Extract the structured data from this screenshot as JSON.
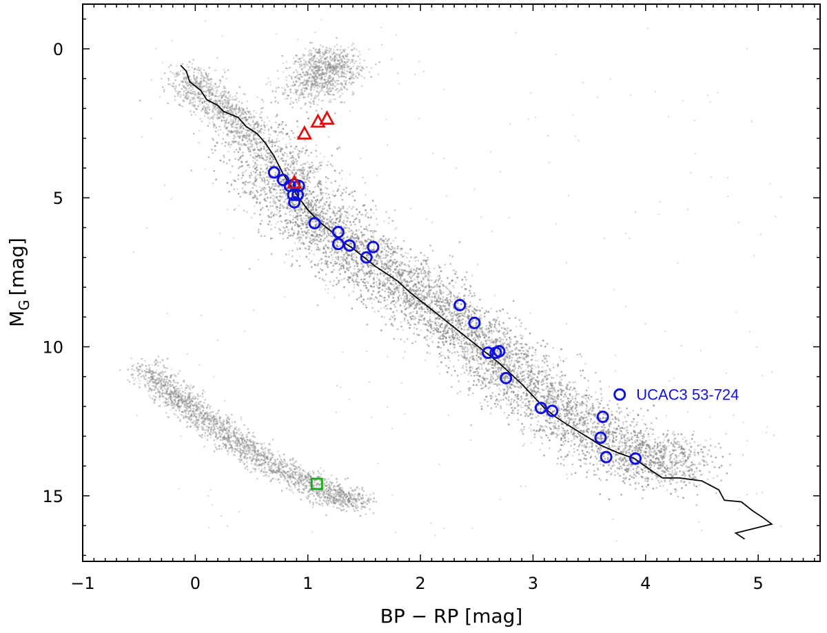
{
  "chart_data": {
    "type": "scatter",
    "title": "",
    "xlabel": "BP − RP [mag]",
    "ylabel_main": "M",
    "ylabel_sub": "G",
    "ylabel_unit": "[mag]",
    "xlim": [
      -1.0,
      5.55
    ],
    "ylim": [
      17.2,
      -1.5
    ],
    "y_inverted": true,
    "grid": false,
    "xticks": [
      -1,
      0,
      1,
      2,
      3,
      4,
      5
    ],
    "xtick_labels": [
      "−1",
      "0",
      "1",
      "2",
      "3",
      "4",
      "5"
    ],
    "yticks": [
      0,
      5,
      10,
      15
    ],
    "ytick_labels": [
      "0",
      "5",
      "10",
      "15"
    ],
    "colors": {
      "background_density": "#8a8a8a",
      "isochrone": "#000000",
      "circle_series": "#1010e0",
      "triangle_series": "#e01010",
      "square_series": "#10b010",
      "annotation": "#1010e0"
    },
    "background_density_regions": [
      {
        "name": "main_sequence",
        "ridge": [
          [
            0.55,
            3.0
          ],
          [
            0.75,
            4.2
          ],
          [
            0.9,
            5.0
          ],
          [
            1.1,
            5.8
          ],
          [
            1.3,
            6.5
          ],
          [
            1.55,
            7.2
          ],
          [
            1.8,
            7.8
          ],
          [
            2.05,
            8.5
          ],
          [
            2.3,
            9.2
          ],
          [
            2.55,
            9.9
          ],
          [
            2.75,
            10.6
          ],
          [
            2.95,
            11.4
          ],
          [
            3.2,
            12.1
          ],
          [
            3.5,
            12.8
          ],
          [
            3.8,
            13.4
          ],
          [
            4.1,
            13.8
          ],
          [
            4.3,
            14.0
          ]
        ],
        "spread": 0.35
      },
      {
        "name": "upper_main_sequence",
        "ridge": [
          [
            -0.1,
            0.8
          ],
          [
            0.1,
            1.6
          ],
          [
            0.3,
            2.2
          ],
          [
            0.5,
            2.9
          ]
        ],
        "spread": 0.2
      },
      {
        "name": "red_giant_clump",
        "ridge": [
          [
            1.0,
            1.5
          ],
          [
            1.15,
            0.6
          ],
          [
            1.25,
            0.5
          ]
        ],
        "spread": 0.25
      },
      {
        "name": "white_dwarf_sequence",
        "ridge": [
          [
            -0.45,
            10.7
          ],
          [
            -0.2,
            11.5
          ],
          [
            0.0,
            12.2
          ],
          [
            0.3,
            13.0
          ],
          [
            0.6,
            13.8
          ],
          [
            0.9,
            14.4
          ],
          [
            1.2,
            14.9
          ],
          [
            1.45,
            15.2
          ]
        ],
        "spread": 0.15
      }
    ],
    "series": [
      {
        "name": "isochrone",
        "marker": "line",
        "points": [
          [
            -0.13,
            0.55
          ],
          [
            -0.08,
            0.75
          ],
          [
            -0.05,
            1.1
          ],
          [
            0.05,
            1.4
          ],
          [
            0.1,
            1.7
          ],
          [
            0.2,
            1.9
          ],
          [
            0.25,
            2.1
          ],
          [
            0.38,
            2.3
          ],
          [
            0.45,
            2.6
          ],
          [
            0.55,
            2.85
          ],
          [
            0.62,
            3.15
          ],
          [
            0.7,
            3.6
          ],
          [
            0.78,
            4.2
          ],
          [
            0.85,
            4.6
          ],
          [
            0.92,
            5.0
          ],
          [
            1.0,
            5.4
          ],
          [
            1.1,
            5.8
          ],
          [
            1.2,
            6.1
          ],
          [
            1.3,
            6.45
          ],
          [
            1.4,
            6.7
          ],
          [
            1.5,
            7.0
          ],
          [
            1.6,
            7.3
          ],
          [
            1.7,
            7.55
          ],
          [
            1.8,
            7.8
          ],
          [
            1.9,
            8.15
          ],
          [
            2.0,
            8.45
          ],
          [
            2.1,
            8.75
          ],
          [
            2.2,
            9.05
          ],
          [
            2.3,
            9.35
          ],
          [
            2.4,
            9.65
          ],
          [
            2.5,
            9.95
          ],
          [
            2.6,
            10.25
          ],
          [
            2.7,
            10.55
          ],
          [
            2.8,
            10.9
          ],
          [
            2.9,
            11.25
          ],
          [
            3.0,
            11.65
          ],
          [
            3.1,
            12.05
          ],
          [
            3.2,
            12.35
          ],
          [
            3.3,
            12.6
          ],
          [
            3.45,
            12.95
          ],
          [
            3.6,
            13.3
          ],
          [
            3.75,
            13.55
          ],
          [
            3.9,
            13.75
          ],
          [
            4.05,
            14.15
          ],
          [
            4.15,
            14.4
          ],
          [
            4.3,
            14.4
          ],
          [
            4.5,
            14.5
          ],
          [
            4.65,
            14.8
          ],
          [
            4.7,
            15.15
          ],
          [
            4.85,
            15.2
          ],
          [
            4.95,
            15.5
          ],
          [
            5.05,
            15.75
          ],
          [
            5.12,
            15.95
          ],
          [
            4.8,
            16.25
          ],
          [
            4.88,
            16.45
          ]
        ]
      },
      {
        "name": "blue_circles",
        "marker": "circle",
        "points": [
          [
            0.7,
            4.15
          ],
          [
            0.78,
            4.4
          ],
          [
            0.84,
            4.6
          ],
          [
            0.87,
            4.9
          ],
          [
            0.88,
            5.15
          ],
          [
            0.91,
            4.9
          ],
          [
            0.92,
            4.6
          ],
          [
            0.88,
            4.55
          ],
          [
            1.06,
            5.85
          ],
          [
            1.27,
            6.15
          ],
          [
            1.27,
            6.55
          ],
          [
            1.37,
            6.6
          ],
          [
            1.52,
            7.0
          ],
          [
            1.58,
            6.65
          ],
          [
            2.35,
            8.6
          ],
          [
            2.48,
            9.2
          ],
          [
            2.6,
            10.2
          ],
          [
            2.67,
            10.2
          ],
          [
            2.7,
            10.15
          ],
          [
            2.76,
            11.05
          ],
          [
            3.07,
            12.05
          ],
          [
            3.17,
            12.15
          ],
          [
            3.62,
            12.35
          ],
          [
            3.6,
            13.05
          ],
          [
            3.65,
            13.7
          ],
          [
            3.77,
            11.6
          ],
          [
            3.91,
            13.75
          ]
        ]
      },
      {
        "name": "red_triangles",
        "marker": "triangle",
        "points": [
          [
            0.97,
            2.85
          ],
          [
            1.09,
            2.45
          ],
          [
            1.17,
            2.35
          ],
          [
            0.88,
            4.5
          ]
        ]
      },
      {
        "name": "green_squares",
        "marker": "square",
        "points": [
          [
            1.08,
            14.6
          ]
        ]
      }
    ],
    "annotations": [
      {
        "text": "UCAC3 53-724",
        "x": 3.77,
        "y": 11.6
      }
    ]
  }
}
